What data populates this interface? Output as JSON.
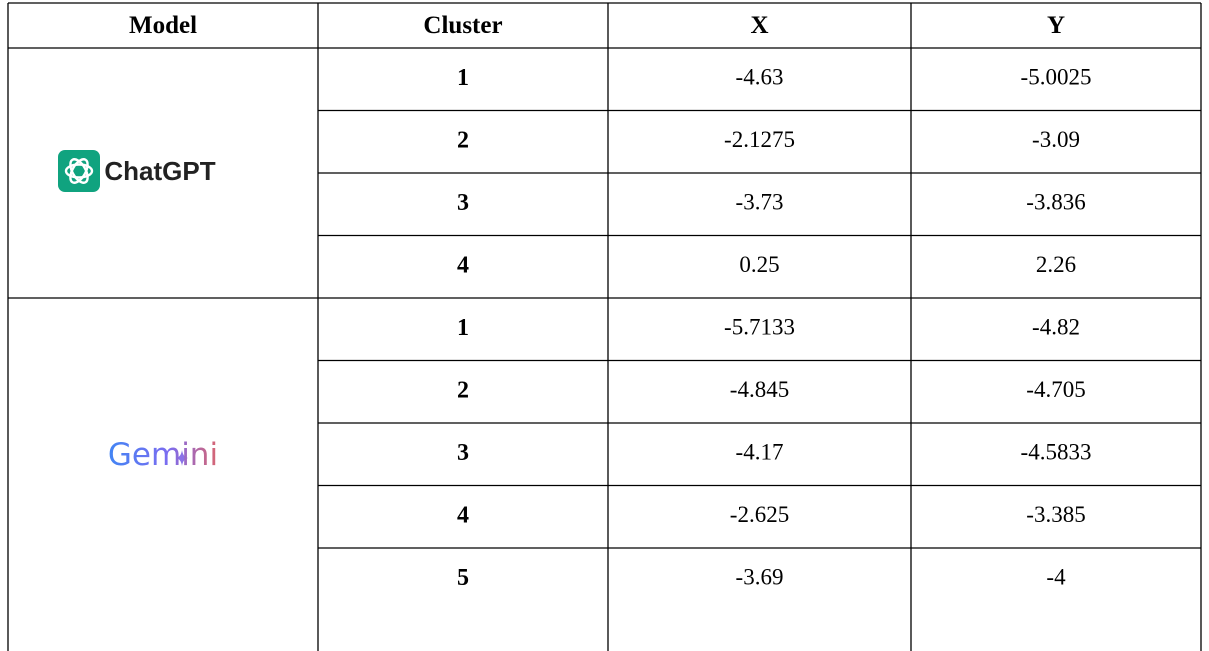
{
  "table": {
    "header": [
      "Model",
      "Cluster",
      "X",
      "Y"
    ],
    "groups": [
      {
        "model": "ChatGPT",
        "rows": [
          [
            1,
            -4.63,
            -5.0025
          ],
          [
            2,
            -2.1275,
            -3.09
          ],
          [
            3,
            -3.73,
            -3.836
          ],
          [
            4,
            0.25,
            2.26
          ]
        ]
      },
      {
        "model": "Gemini",
        "rows": [
          [
            1,
            -5.7133,
            -4.82
          ],
          [
            2,
            -4.845,
            -4.705
          ],
          [
            3,
            -4.17,
            -4.5833
          ],
          [
            4,
            -2.625,
            -3.385
          ],
          [
            5,
            -3.69,
            -4
          ]
        ]
      }
    ]
  }
}
